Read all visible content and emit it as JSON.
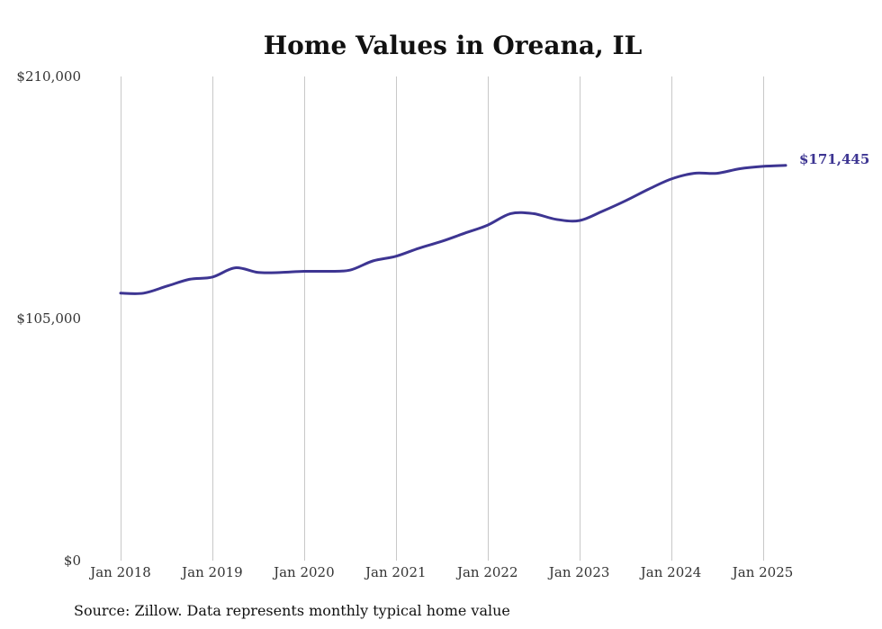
{
  "chart_data": {
    "type": "line",
    "title": "Home Values in Oreana, IL",
    "source": "Source: Zillow. Data represents monthly typical home value",
    "xlabel": "",
    "ylabel": "",
    "ylim": [
      0,
      210000
    ],
    "y_ticks": [
      {
        "value": 0,
        "label": "$0"
      },
      {
        "value": 105000,
        "label": "$105,000"
      },
      {
        "value": 210000,
        "label": "$210,000"
      }
    ],
    "x_ticks": [
      {
        "value": 2018,
        "label": "Jan 2018"
      },
      {
        "value": 2019,
        "label": "Jan 2019"
      },
      {
        "value": 2020,
        "label": "Jan 2020"
      },
      {
        "value": 2021,
        "label": "Jan 2021"
      },
      {
        "value": 2022,
        "label": "Jan 2022"
      },
      {
        "value": 2023,
        "label": "Jan 2023"
      },
      {
        "value": 2024,
        "label": "Jan 2024"
      },
      {
        "value": 2025,
        "label": "Jan 2025"
      }
    ],
    "xlim": [
      2018,
      2025.25
    ],
    "grid": "vertical",
    "line_color": "#3d3592",
    "end_label": "$171,445",
    "series": [
      {
        "x": [
          2018.0,
          2018.25,
          2018.5,
          2018.75,
          2019.0,
          2019.25,
          2019.5,
          2019.75,
          2020.0,
          2020.25,
          2020.5,
          2020.75,
          2021.0,
          2021.25,
          2021.5,
          2021.75,
          2022.0,
          2022.25,
          2022.5,
          2022.75,
          2023.0,
          2023.25,
          2023.5,
          2023.75,
          2024.0,
          2024.25,
          2024.5,
          2024.75,
          2025.0,
          2025.25
        ],
        "y": [
          116000,
          116000,
          119000,
          122000,
          123000,
          127000,
          125000,
          125000,
          125500,
          125500,
          126000,
          130000,
          132000,
          135500,
          138500,
          142000,
          145500,
          150500,
          150500,
          148000,
          147500,
          151500,
          156000,
          161000,
          165500,
          168000,
          168000,
          170000,
          171000,
          171445
        ]
      }
    ]
  }
}
